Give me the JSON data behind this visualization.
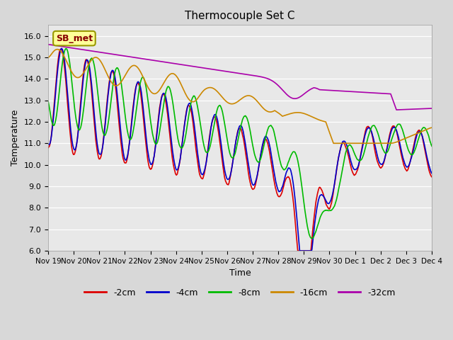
{
  "title": "Thermocouple Set C",
  "xlabel": "Time",
  "ylabel": "Temperature",
  "ylim": [
    6.0,
    16.5
  ],
  "yticks": [
    6.0,
    7.0,
    8.0,
    9.0,
    10.0,
    11.0,
    12.0,
    13.0,
    14.0,
    15.0,
    16.0
  ],
  "bg_color": "#d8d8d8",
  "plot_bg_color": "#e8e8e8",
  "legend_labels": [
    "-2cm",
    "-4cm",
    "-8cm",
    "-16cm",
    "-32cm"
  ],
  "legend_colors": [
    "#dd0000",
    "#0000cc",
    "#00bb00",
    "#cc8800",
    "#aa00aa"
  ],
  "annotation": {
    "text": "SB_met",
    "facecolor": "#ffff99",
    "edgecolor": "#999900",
    "textcolor": "#880000"
  },
  "x_tick_labels": [
    "Nov 19",
    "Nov 20",
    "Nov 21",
    "Nov 22",
    "Nov 23",
    "Nov 24",
    "Nov 25",
    "Nov 26",
    "Nov 27",
    "Nov 28",
    "Nov 29",
    "Nov 30",
    "Dec 1",
    "Dec 2",
    "Dec 3",
    "Dec 4"
  ],
  "grid_color": "#ffffff",
  "figsize": [
    6.4,
    4.8
  ],
  "dpi": 100
}
